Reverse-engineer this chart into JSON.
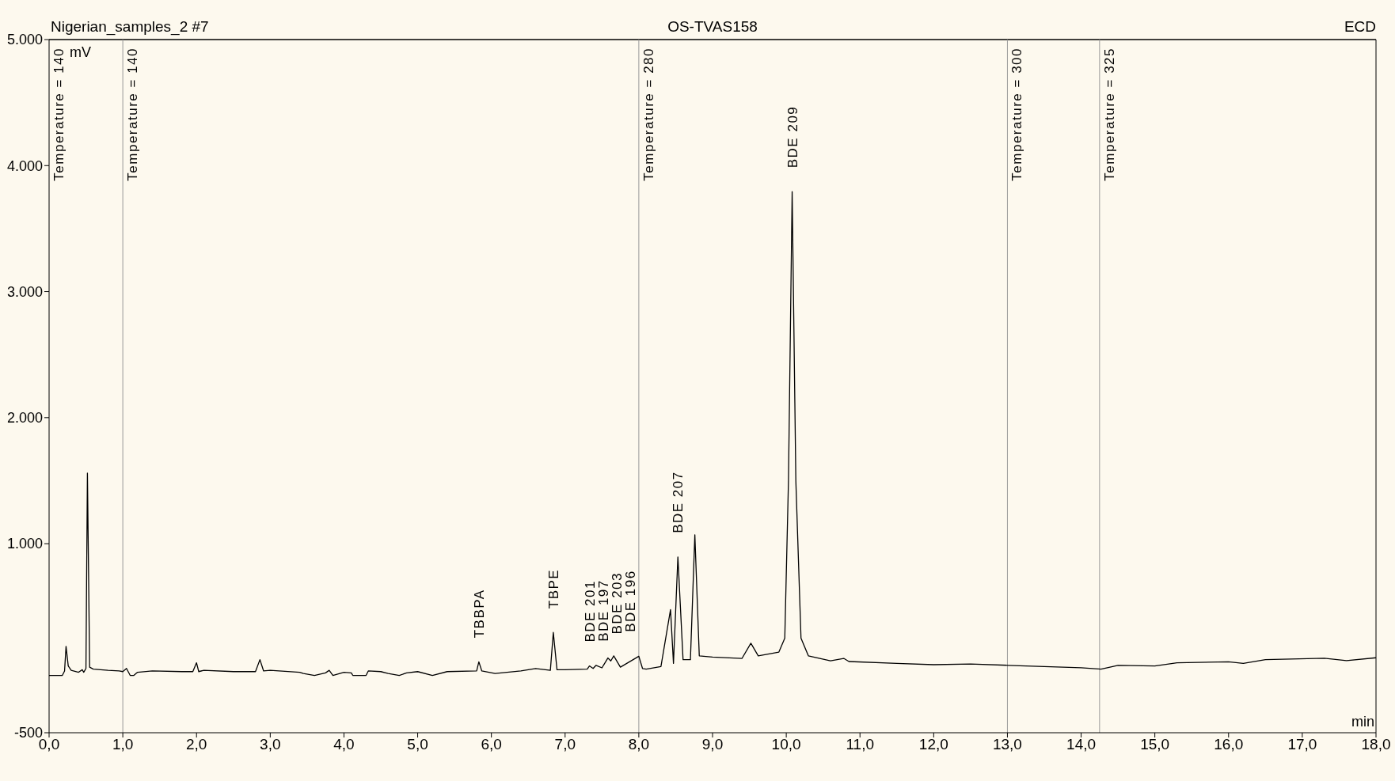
{
  "chart_data": {
    "type": "line",
    "title": "Nigerian_samples_2 #7",
    "subtitle": "OS-TVAS158",
    "xlabel": "min",
    "ylabel": "mV",
    "annotations": [
      "ECD",
      "Temperature = 140",
      {
        "text": "Temperature = 140",
        "x": 1
      },
      {
        "text": "Temperature = 280",
        "x": 8
      },
      {
        "text": "Temperature = 300",
        "x": 13
      },
      {
        "text": "Temperature = 325",
        "x": 14.25
      },
      {
        "text": "TBBPA",
        "x": 5.83,
        "y": 63
      },
      {
        "text": "TBPE",
        "x": 6.84,
        "y": 296
      },
      {
        "text": "BDE 201",
        "x": 7.33,
        "y": 30
      },
      {
        "text": "BDE 197",
        "x": 7.42,
        "y": 35
      },
      {
        "text": "BDE 203",
        "x": 7.58,
        "y": 93
      },
      {
        "text": "BDE 196",
        "x": 7.66,
        "y": 110
      },
      {
        "text": "BDE 207",
        "x": 8.53,
        "y": 895
      },
      {
        "text": "BDE 209",
        "x": 10.08,
        "y": 3793
      }
    ],
    "series": [
      {
        "color": "#000000",
        "x": [
          0,
          0.18,
          0.21,
          0.23,
          0.26,
          0.3,
          0.4,
          0.45,
          0.47,
          0.5,
          0.52,
          0.55,
          0.6,
          0.8,
          0.95,
          1.0,
          1.05,
          1.1,
          1.15,
          1.2,
          1.4,
          1.8,
          1.95,
          2.0,
          2.03,
          2.1,
          2.5,
          2.8,
          2.86,
          2.91,
          3.0,
          3.4,
          3.45,
          3.6,
          3.75,
          3.8,
          3.85,
          4.0,
          4.1,
          4.12,
          4.3,
          4.33,
          4.5,
          4.6,
          4.75,
          4.85,
          5.0,
          5.2,
          5.4,
          5.8,
          5.83,
          5.87,
          6.05,
          6.4,
          6.6,
          6.8,
          6.84,
          6.89,
          7.0,
          7.3,
          7.33,
          7.38,
          7.42,
          7.5,
          7.58,
          7.62,
          7.66,
          7.75,
          8.0,
          8.05,
          8.1,
          8.3,
          8.43,
          8.47,
          8.53,
          8.6,
          8.7,
          8.76,
          8.82,
          9.0,
          9.4,
          9.52,
          9.62,
          9.9,
          9.98,
          10.03,
          10.08,
          10.13,
          10.2,
          10.3,
          10.6,
          10.78,
          10.85,
          11.5,
          12.0,
          12.5,
          13.0,
          13.5,
          14.0,
          14.27,
          14.5,
          15.0,
          15.3,
          16.0,
          16.2,
          16.5,
          17.3,
          17.6,
          18.0
        ],
        "values": [
          -45,
          -45,
          -10,
          185,
          30,
          -5,
          -20,
          0,
          -20,
          10,
          1560,
          20,
          5,
          -5,
          -10,
          -15,
          10,
          -45,
          -45,
          -20,
          -10,
          -15,
          -15,
          55,
          -15,
          -5,
          -15,
          -15,
          80,
          -10,
          -5,
          -20,
          -30,
          -45,
          -25,
          -5,
          -45,
          -20,
          -25,
          -45,
          -45,
          -10,
          -15,
          -30,
          -45,
          -25,
          -15,
          -45,
          -15,
          -10,
          63,
          -10,
          -30,
          -10,
          10,
          -5,
          296,
          0,
          0,
          5,
          30,
          10,
          35,
          15,
          93,
          70,
          110,
          20,
          107,
          10,
          5,
          25,
          477,
          50,
          895,
          80,
          80,
          1071,
          110,
          100,
          90,
          210,
          110,
          140,
          250,
          1500,
          3793,
          1500,
          250,
          110,
          70,
          90,
          65,
          50,
          40,
          45,
          35,
          25,
          15,
          5,
          35,
          30,
          55,
          63,
          50,
          80,
          91,
          72,
          95
        ]
      }
    ],
    "xlim": [
      0,
      18
    ],
    "ylim": [
      -500,
      5000
    ],
    "xticks": [
      {
        "value": 0,
        "label": "0,0"
      },
      {
        "value": 1,
        "label": "1,0"
      },
      {
        "value": 2,
        "label": "2,0"
      },
      {
        "value": 3,
        "label": "3,0"
      },
      {
        "value": 4,
        "label": "4,0"
      },
      {
        "value": 5,
        "label": "5,0"
      },
      {
        "value": 6,
        "label": "6,0"
      },
      {
        "value": 7,
        "label": "7,0"
      },
      {
        "value": 8,
        "label": "8,0"
      },
      {
        "value": 9,
        "label": "9,0"
      },
      {
        "value": 10,
        "label": "10,0"
      },
      {
        "value": 11,
        "label": "11,0"
      },
      {
        "value": 12,
        "label": "12,0"
      },
      {
        "value": 13,
        "label": "13,0"
      },
      {
        "value": 14,
        "label": "14,0"
      },
      {
        "value": 15,
        "label": "15,0"
      },
      {
        "value": 16,
        "label": "16,0"
      },
      {
        "value": 17,
        "label": "17,0"
      },
      {
        "value": 18,
        "label": "18,0"
      }
    ],
    "yticks": [
      -500,
      {
        "value": 1000,
        "label": "1.000"
      },
      {
        "value": 2000,
        "label": "2.000"
      },
      {
        "value": 3000,
        "label": "3.000"
      },
      {
        "value": 4000,
        "label": "4.000"
      },
      {
        "value": 5000,
        "label": "5.000"
      }
    ],
    "ref_lines": [
      {
        "axis": "x",
        "value": 1,
        "color": "#999999"
      },
      {
        "axis": "x",
        "value": 8,
        "color": "#999999"
      },
      {
        "axis": "x",
        "value": 13,
        "color": "#999999"
      },
      {
        "axis": "x",
        "value": 14.25,
        "color": "#999999"
      }
    ],
    "grid": false,
    "legend": false,
    "marker": "none",
    "line_style": "solid"
  }
}
